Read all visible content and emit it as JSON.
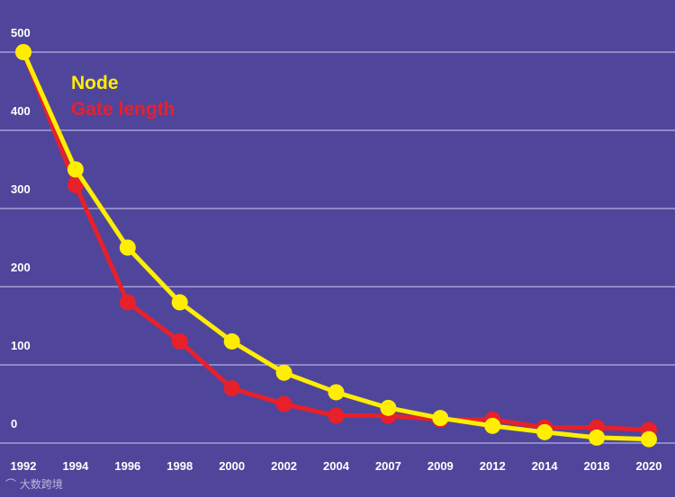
{
  "chart_data": {
    "type": "line",
    "title": "",
    "xlabel": "",
    "ylabel": "",
    "ylim": [
      0,
      500
    ],
    "yticks": [
      0,
      100,
      200,
      300,
      400,
      500
    ],
    "grid": true,
    "legend_position": "top-left",
    "categories": [
      "1992",
      "1994",
      "1996",
      "1998",
      "2000",
      "2002",
      "2004",
      "2007",
      "2009",
      "2012",
      "2014",
      "2018",
      "2020"
    ],
    "series": [
      {
        "name": "Node",
        "color": "#ffee00",
        "values": [
          500,
          350,
          250,
          180,
          130,
          90,
          65,
          45,
          32,
          22,
          14,
          7,
          5
        ]
      },
      {
        "name": "Gate length",
        "color": "#e8202a",
        "values": [
          500,
          330,
          180,
          130,
          70,
          50,
          35,
          35,
          30,
          30,
          20,
          20,
          17
        ]
      }
    ]
  },
  "colors": {
    "background": "#4f469b",
    "grid": "#b7b1de",
    "tick_text": "#ffffff"
  },
  "watermark": "大数跨境"
}
